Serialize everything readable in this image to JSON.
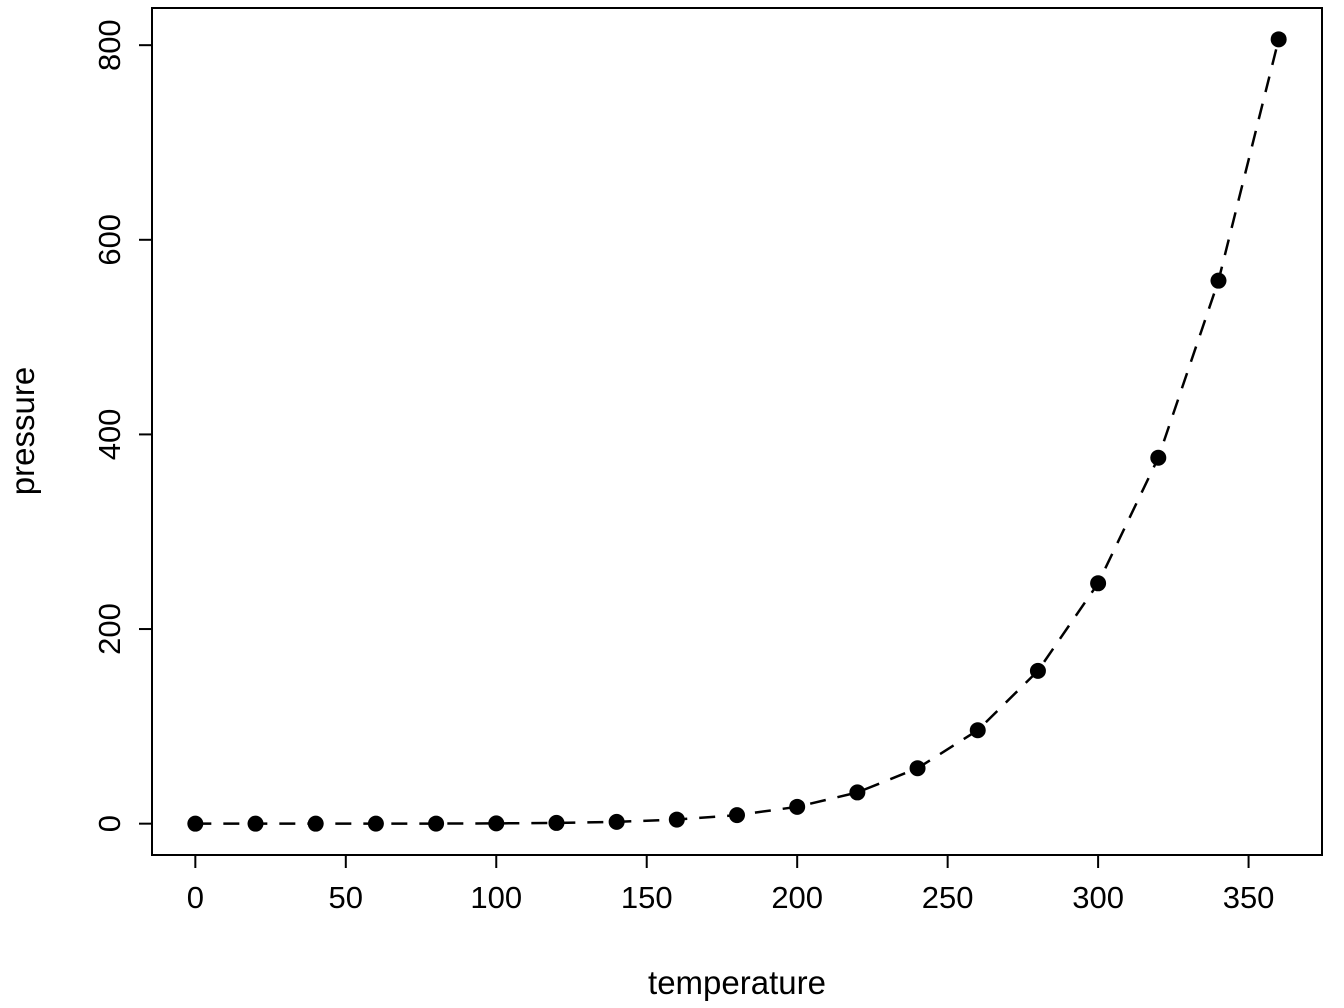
{
  "chart_data": {
    "type": "scatter",
    "title": "",
    "xlabel": "temperature",
    "ylabel": "pressure",
    "x": [
      0,
      20,
      40,
      60,
      80,
      100,
      120,
      140,
      160,
      180,
      200,
      220,
      240,
      260,
      280,
      300,
      320,
      340,
      360
    ],
    "y": [
      0.0002,
      0.0012,
      0.006,
      0.03,
      0.09,
      0.27,
      0.75,
      1.85,
      4.2,
      8.8,
      17.3,
      32.1,
      57,
      96,
      157,
      247,
      376,
      558,
      806
    ],
    "x_ticks": [
      0,
      50,
      100,
      150,
      200,
      250,
      300,
      350
    ],
    "y_ticks": [
      0,
      200,
      400,
      600,
      800
    ],
    "xlim": [
      -14.4,
      374.4
    ],
    "ylim": [
      -32.2,
      838.2
    ],
    "line_style": "dashed",
    "marker": "filled-circle",
    "series_color": "#000000",
    "background_color": "#ffffff",
    "grid": false,
    "legend": "none"
  }
}
